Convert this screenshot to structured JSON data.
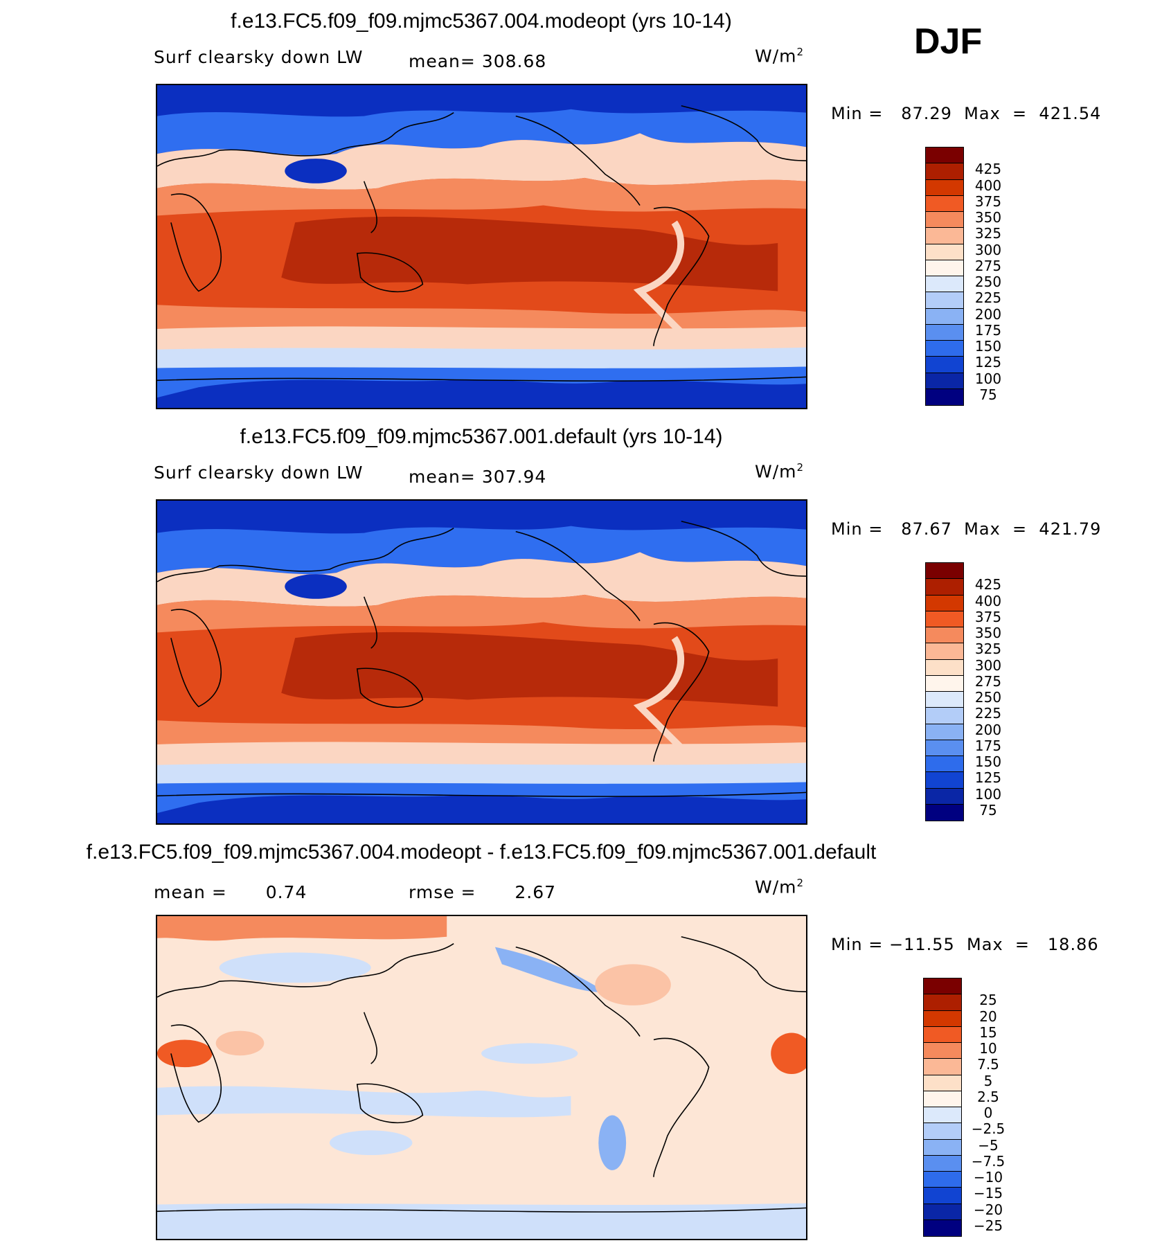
{
  "season": "DJF",
  "panels": [
    {
      "title": "f.e13.FC5.f09_f09.mjmc5367.004.modeopt (yrs 10-14)",
      "variable": "Surf clearsky down LW",
      "mean_label": "mean=",
      "mean_value": "308.68",
      "units": "W/m",
      "units_sup": "2",
      "minmax": "Min =   87.29  Max  =  421.54",
      "colorbar": {
        "labels": [
          "425",
          "400",
          "375",
          "350",
          "325",
          "300",
          "275",
          "250",
          "225",
          "200",
          "175",
          "150",
          "125",
          "100",
          "75"
        ],
        "colors": [
          "#7a0000",
          "#ad1f00",
          "#d33800",
          "#f05a24",
          "#f58a5d",
          "#fbb896",
          "#fde0c8",
          "#fff5ec",
          "#dce9fb",
          "#b3cdf8",
          "#8ab2f4",
          "#5a8ff0",
          "#2e6cec",
          "#1144d2",
          "#0a26a6",
          "#000080"
        ]
      },
      "colors": {
        "warm_peak": "#b72a0a",
        "warm": "#e24a1a",
        "mid": "#f58a5d",
        "light": "#fbd6c2",
        "cool": "#cfe0fa",
        "cold": "#2f6ef0",
        "deep": "#0b2fc0"
      }
    },
    {
      "title": "f.e13.FC5.f09_f09.mjmc5367.001.default (yrs 10-14)",
      "variable": "Surf clearsky down LW",
      "mean_label": "mean=",
      "mean_value": "307.94",
      "units": "W/m",
      "units_sup": "2",
      "minmax": "Min =   87.67  Max  =  421.79",
      "colorbar": {
        "labels": [
          "425",
          "400",
          "375",
          "350",
          "325",
          "300",
          "275",
          "250",
          "225",
          "200",
          "175",
          "150",
          "125",
          "100",
          "75"
        ],
        "colors": [
          "#7a0000",
          "#ad1f00",
          "#d33800",
          "#f05a24",
          "#f58a5d",
          "#fbb896",
          "#fde0c8",
          "#fff5ec",
          "#dce9fb",
          "#b3cdf8",
          "#8ab2f4",
          "#5a8ff0",
          "#2e6cec",
          "#1144d2",
          "#0a26a6",
          "#000080"
        ]
      },
      "colors": {
        "warm_peak": "#b72a0a",
        "warm": "#e24a1a",
        "mid": "#f58a5d",
        "light": "#fbd6c2",
        "cool": "#cfe0fa",
        "cold": "#2f6ef0",
        "deep": "#0b2fc0"
      }
    },
    {
      "title": "f.e13.FC5.f09_f09.mjmc5367.004.modeopt - f.e13.FC5.f09_f09.mjmc5367.001.default",
      "mean_label": "mean =",
      "mean_value": "0.74",
      "rmse_label": "rmse =",
      "rmse_value": "2.67",
      "units": "W/m",
      "units_sup": "2",
      "minmax": "Min = −11.55  Max  =   18.86",
      "colorbar": {
        "labels": [
          "25",
          "20",
          "15",
          "10",
          "7.5",
          "5",
          "2.5",
          "0",
          "−2.5",
          "−5",
          "−7.5",
          "−10",
          "−15",
          "−20",
          "−25"
        ],
        "colors": [
          "#7a0000",
          "#ad1f00",
          "#d33800",
          "#f05a24",
          "#f58a5d",
          "#fbb896",
          "#fde0c8",
          "#fff5ec",
          "#dce9fb",
          "#b3cdf8",
          "#8ab2f4",
          "#5a8ff0",
          "#2e6cec",
          "#1144d2",
          "#0a26a6",
          "#000080"
        ]
      },
      "colors": {
        "bg": "#fde6d6",
        "neg": "#cfe0fa",
        "neg_strong": "#8ab2f4",
        "pos": "#fbc3a6",
        "pos_strong": "#f05a24"
      }
    }
  ]
}
